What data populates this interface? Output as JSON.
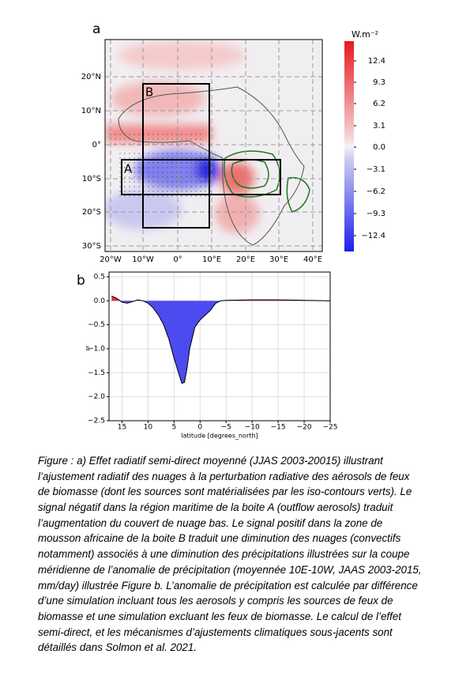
{
  "panel_a": {
    "label": "a",
    "box_a": "A",
    "box_b": "B",
    "colorbar_unit": "W.m⁻²",
    "colorbar_ticks": [
      "12.4",
      "9.3",
      "6.2",
      "3.1",
      "0.0",
      "−3.1",
      "−6.2",
      "−9.3",
      "−12.4"
    ],
    "lat_labels": [
      "20°N",
      "10°N",
      "0°",
      "10°S",
      "20°S",
      "30°S"
    ],
    "lon_labels": [
      "20°W",
      "10°W",
      "0°",
      "10°E",
      "20°E",
      "30°E",
      "40°E"
    ]
  },
  "chart_data": {
    "type": "area",
    "panel_label": "b",
    "xlabel": "latitude [degrees_north]",
    "ylabel": "pr",
    "x": [
      17,
      16,
      15,
      14,
      13,
      12,
      11,
      10,
      9,
      8,
      7,
      6,
      5,
      4,
      3.5,
      3,
      2.5,
      2,
      1,
      0,
      -1,
      -2,
      -3,
      -4,
      -5,
      -10,
      -15,
      -20,
      -25
    ],
    "values": [
      0.1,
      0.05,
      -0.03,
      -0.05,
      -0.02,
      0.02,
      0.0,
      -0.05,
      -0.15,
      -0.3,
      -0.5,
      -0.8,
      -1.2,
      -1.55,
      -1.72,
      -1.7,
      -1.4,
      -1.0,
      -0.55,
      -0.4,
      -0.3,
      -0.2,
      -0.05,
      0.0,
      0.01,
      0.02,
      0.02,
      0.01,
      0.0
    ],
    "negative_color": "#4b4bf0",
    "positive_color": "#e33030",
    "line_color": "#000000",
    "xlim": [
      17.5,
      -25
    ],
    "ylim": [
      -2.5,
      0.5
    ],
    "grid": true,
    "xticks": [
      15,
      10,
      5,
      0,
      {
        "value": -5,
        "label": "−5"
      },
      {
        "value": -10,
        "label": "−10"
      },
      {
        "value": -15,
        "label": "−15"
      },
      {
        "value": -20,
        "label": "−20"
      },
      {
        "value": -25,
        "label": "−25"
      }
    ],
    "yticks": [
      0.5,
      {
        "value": 0,
        "label": "0.0"
      },
      {
        "value": -0.5,
        "label": "−0.5"
      },
      {
        "value": -1,
        "label": "−1.0"
      },
      {
        "value": -1.5,
        "label": "−1.5"
      },
      {
        "value": -2,
        "label": "−2.0"
      },
      {
        "value": -2.5,
        "label": "−2.5"
      }
    ]
  },
  "caption_lines": [
    "Figure : a) Effet radiatif semi-direct moyenné (JJAS 2003-20015) illustrant",
    "l’ajustement radiatif des nuages à la perturbation radiative des aérosols de feux",
    "de biomasse (dont les sources sont matérialisées par les iso-contours verts). Le",
    "signal négatif dans la région maritime de la boite A (outflow aerosols) traduit",
    "l’augmentation du couvert de nuage bas. Le signal positif dans la zone de",
    "mousson africaine de la boite B traduit une diminution des nuages (convectifs",
    "notamment) associés à une diminution des précipitations illustrées sur la coupe",
    "méridienne de l’anomalie de précipitation (moyennée 10E-10W, JAAS 2003-2015,",
    "mm/day) illustrée Figure b. L’anomalie de précipitation est calculée par différence",
    "d’une simulation incluant tous les aerosols y compris les sources de feux de",
    "biomasse et une simulation excluant les feux de biomasse. Le calcul de l’effet",
    "semi-direct, et les mécanismes d’ajustements climatiques sous-jacents sont",
    "détaillés dans Solmon et al. 2021."
  ]
}
